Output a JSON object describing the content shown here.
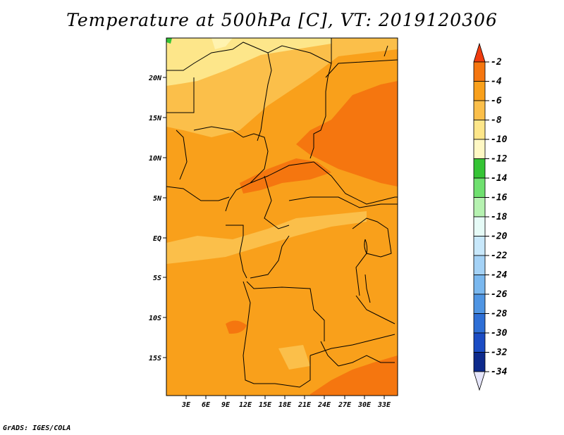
{
  "title": "Temperature at 500hPa [C], VT: 2019120306",
  "credit": "GrADS: IGES/COLA",
  "map": {
    "lat_labels": [
      "20N",
      "15N",
      "10N",
      "5N",
      "EQ",
      "5S",
      "10S",
      "15S"
    ],
    "lon_labels": [
      "3E",
      "6E",
      "9E",
      "12E",
      "15E",
      "18E",
      "21E",
      "24E",
      "27E",
      "30E",
      "33E"
    ],
    "field_colors": {
      "light_yellow": "#fde68a",
      "pale_orange": "#fbbf4a",
      "orange": "#f9a01b",
      "deep_orange": "#f5760f",
      "green": "#35c435"
    }
  },
  "colorbar": {
    "labels": [
      "-2",
      "-4",
      "-6",
      "-8",
      "-10",
      "-12",
      "-14",
      "-16",
      "-18",
      "-20",
      "-22",
      "-24",
      "-26",
      "-28",
      "-30",
      "-32",
      "-34"
    ],
    "colors": [
      "#f03c0f",
      "#f5760f",
      "#f9a01b",
      "#fbbf4a",
      "#fde68a",
      "#fff8c4",
      "#35c435",
      "#6fe06f",
      "#b6f2b1",
      "#e6fbf7",
      "#c8e8fb",
      "#a4d2f6",
      "#7ab8ef",
      "#4f95e3",
      "#2e6fd6",
      "#1b4cc4",
      "#0d2a8c",
      "#e6e6fb"
    ]
  }
}
